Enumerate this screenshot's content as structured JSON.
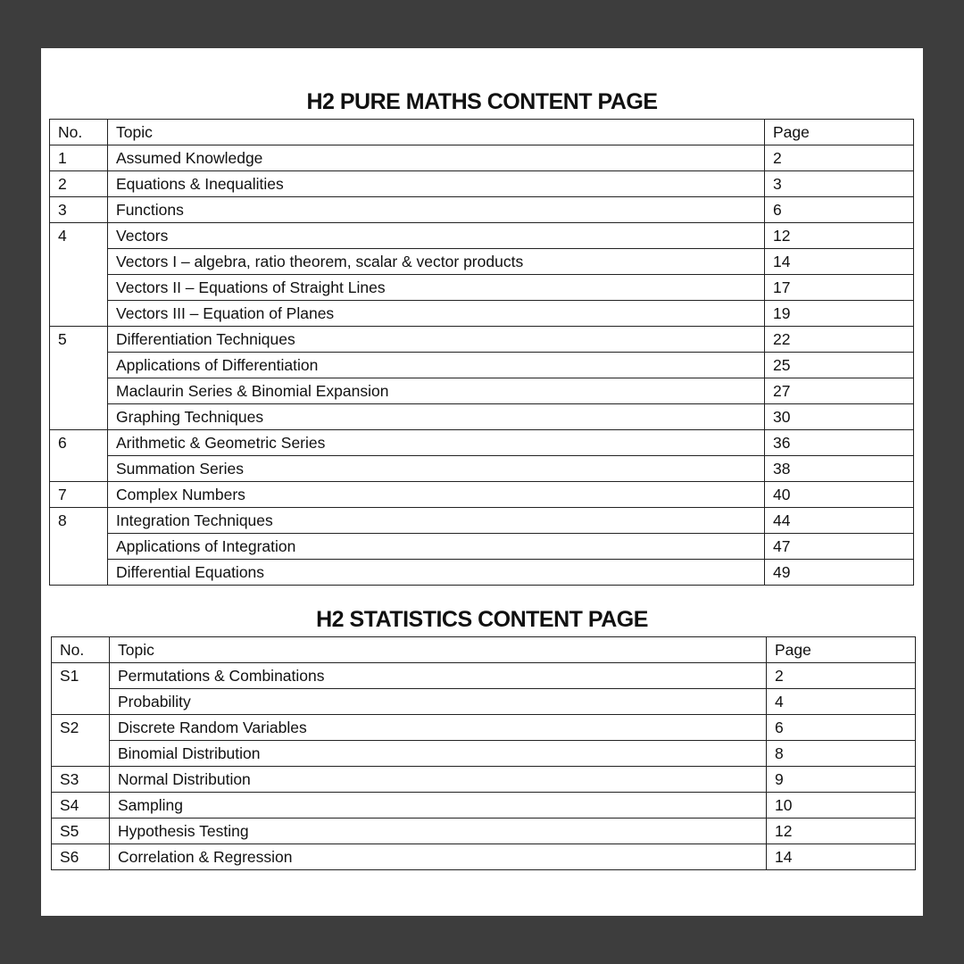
{
  "pure": {
    "title": "H2 PURE MATHS CONTENT PAGE",
    "headers": {
      "no": "No.",
      "topic": "Topic",
      "page": "Page"
    },
    "groups": [
      {
        "no": "1",
        "items": [
          {
            "topic": "Assumed Knowledge",
            "page": "2"
          }
        ]
      },
      {
        "no": "2",
        "items": [
          {
            "topic": "Equations & Inequalities",
            "page": "3"
          }
        ]
      },
      {
        "no": "3",
        "items": [
          {
            "topic": "Functions",
            "page": "6"
          }
        ]
      },
      {
        "no": "4",
        "items": [
          {
            "topic": "Vectors",
            "page": "12"
          },
          {
            "topic": "Vectors I – algebra, ratio theorem, scalar & vector products",
            "page": "14"
          },
          {
            "topic": "Vectors II – Equations of Straight Lines",
            "page": "17"
          },
          {
            "topic": "Vectors III – Equation of Planes",
            "page": "19"
          }
        ]
      },
      {
        "no": "5",
        "items": [
          {
            "topic": "Differentiation Techniques",
            "page": "22"
          },
          {
            "topic": "Applications of Differentiation",
            "page": "25"
          },
          {
            "topic": "Maclaurin Series & Binomial Expansion",
            "page": "27"
          },
          {
            "topic": "Graphing Techniques",
            "page": "30"
          }
        ]
      },
      {
        "no": "6",
        "items": [
          {
            "topic": "Arithmetic & Geometric Series",
            "page": "36"
          },
          {
            "topic": "Summation Series",
            "page": "38"
          }
        ]
      },
      {
        "no": "7",
        "items": [
          {
            "topic": "Complex Numbers",
            "page": "40"
          }
        ]
      },
      {
        "no": "8",
        "items": [
          {
            "topic": "Integration Techniques",
            "page": "44"
          },
          {
            "topic": "Applications of Integration",
            "page": "47"
          },
          {
            "topic": "Differential Equations",
            "page": "49"
          }
        ]
      }
    ]
  },
  "stats": {
    "title": "H2 STATISTICS CONTENT PAGE",
    "headers": {
      "no": "No.",
      "topic": "Topic",
      "page": "Page"
    },
    "groups": [
      {
        "no": "S1",
        "items": [
          {
            "topic": "Permutations & Combinations",
            "page": "2"
          },
          {
            "topic": "Probability",
            "page": "4"
          }
        ]
      },
      {
        "no": "S2",
        "items": [
          {
            "topic": "Discrete Random Variables",
            "page": "6"
          },
          {
            "topic": "Binomial Distribution",
            "page": "8"
          }
        ]
      },
      {
        "no": "S3",
        "items": [
          {
            "topic": "Normal Distribution",
            "page": "9"
          }
        ]
      },
      {
        "no": "S4",
        "items": [
          {
            "topic": "Sampling",
            "page": "10"
          }
        ]
      },
      {
        "no": "S5",
        "items": [
          {
            "topic": "Hypothesis Testing",
            "page": "12"
          }
        ]
      },
      {
        "no": "S6",
        "items": [
          {
            "topic": "Correlation & Regression",
            "page": "14"
          }
        ]
      }
    ]
  }
}
